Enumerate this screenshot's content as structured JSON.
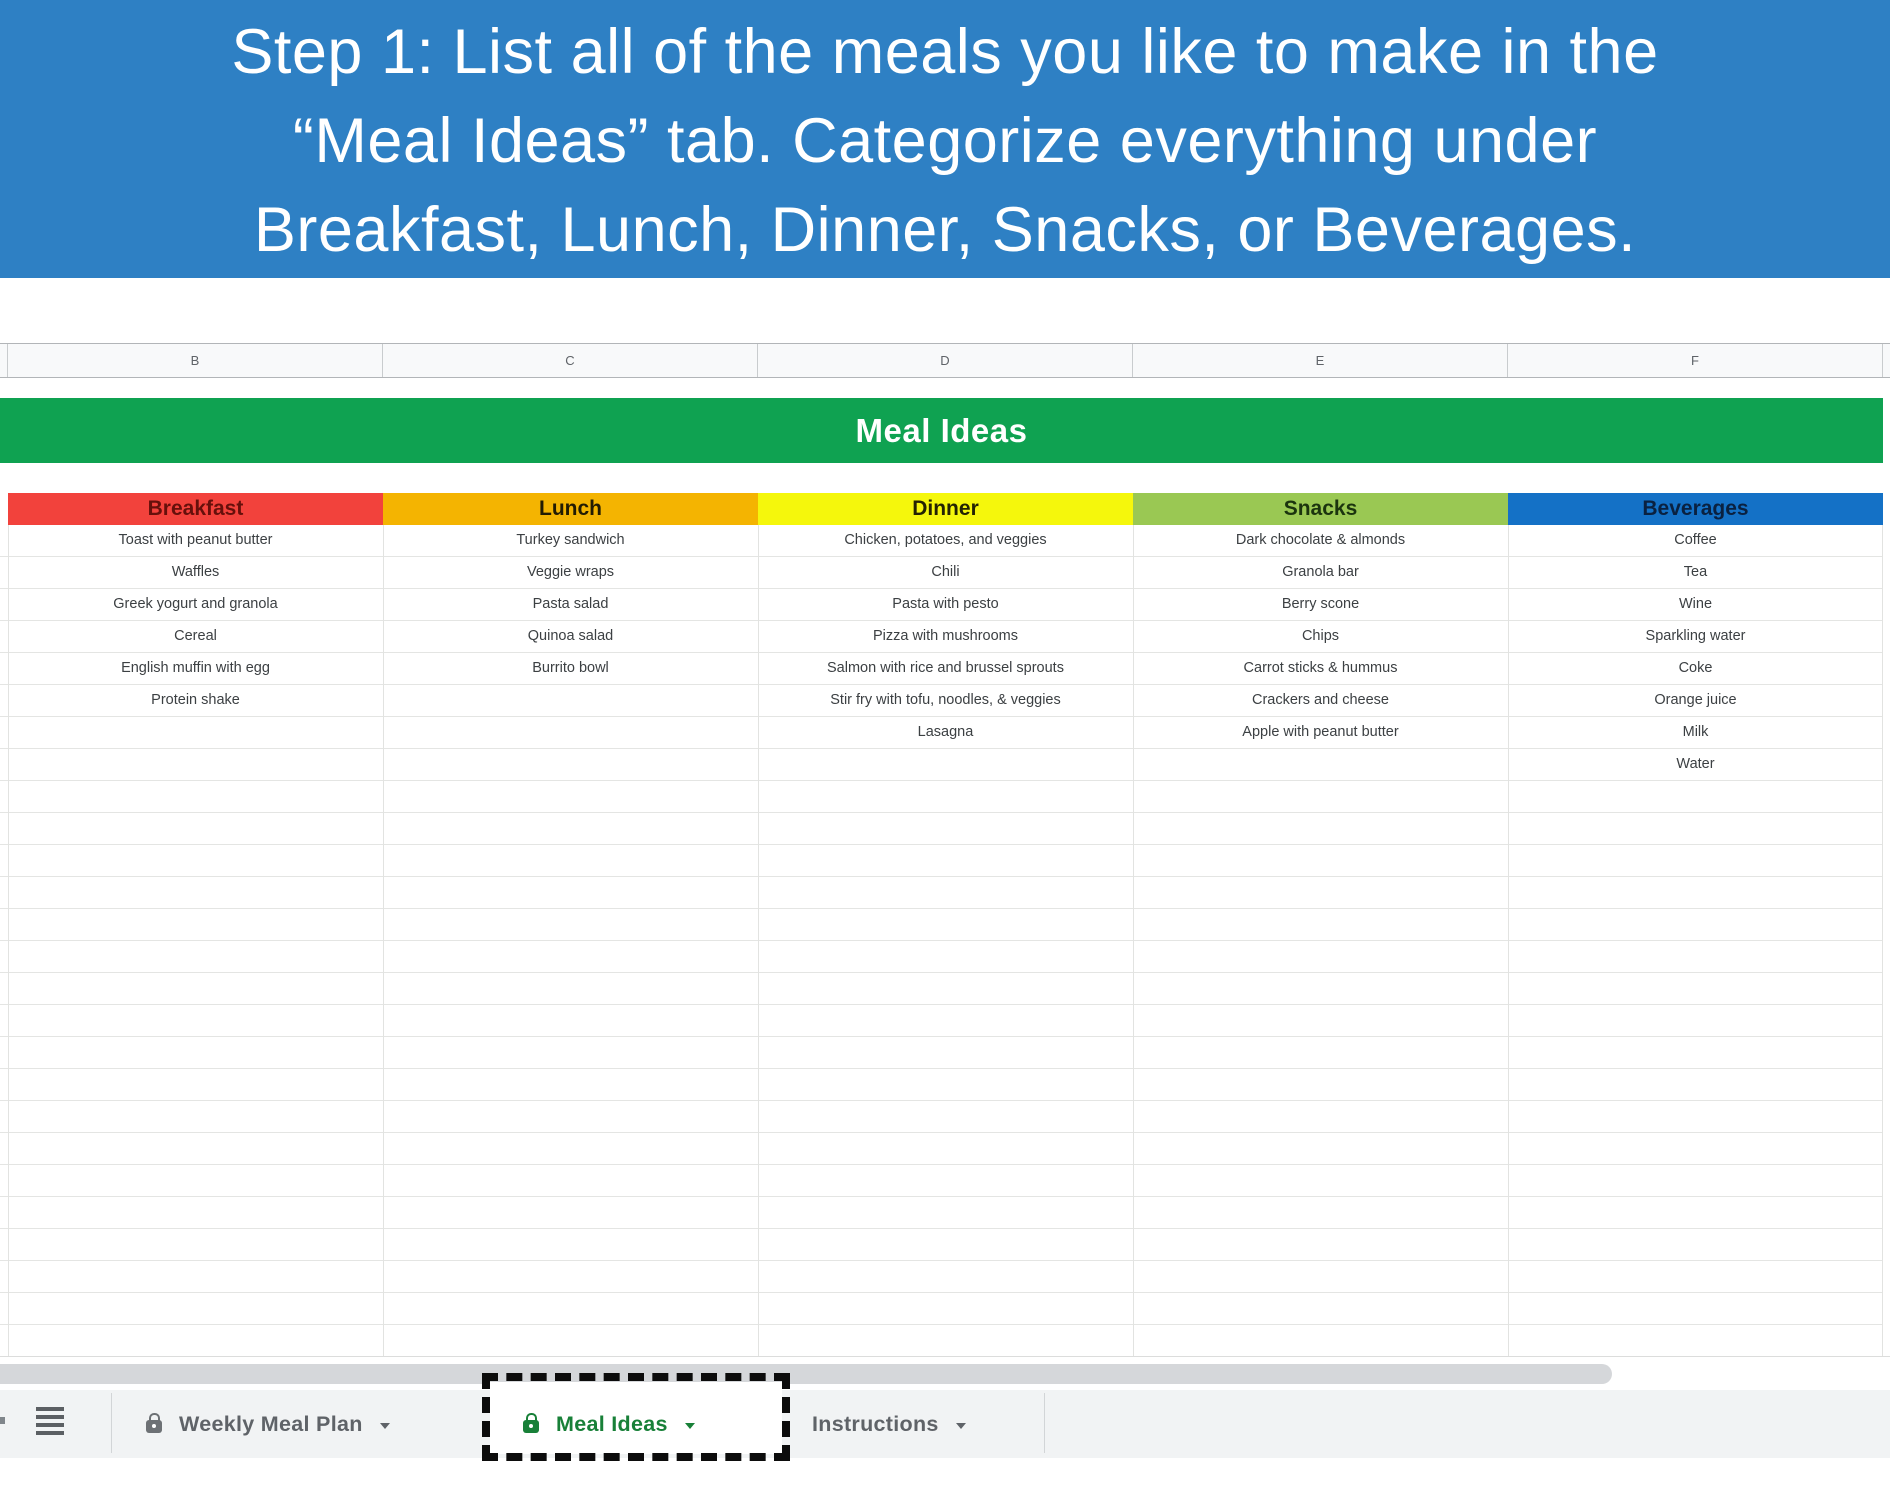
{
  "banner": {
    "bg": "#2e80c4",
    "lines": [
      "Step 1: List all of the meals you like to make in the",
      "“Meal Ideas” tab. Categorize everything under",
      "Breakfast, Lunch, Dinner, Snacks, or Beverages."
    ]
  },
  "column_headers": [
    "B",
    "C",
    "D",
    "E",
    "F"
  ],
  "sheet": {
    "title": "Meal Ideas",
    "title_bg": "#0fa251",
    "categories": [
      {
        "label": "Breakfast",
        "bg": "#f2423c",
        "fg": "#66100b"
      },
      {
        "label": "Lunch",
        "bg": "#f4b401",
        "fg": "#231c03"
      },
      {
        "label": "Dinner",
        "bg": "#f5f70c",
        "fg": "#232303"
      },
      {
        "label": "Snacks",
        "bg": "#9ac853",
        "fg": "#1b340e"
      },
      {
        "label": "Beverages",
        "bg": "#1471c6",
        "fg": "#0a2140"
      }
    ],
    "rows": [
      [
        "Toast with peanut butter",
        "Turkey sandwich",
        "Chicken, potatoes, and veggies",
        "Dark chocolate & almonds",
        "Coffee"
      ],
      [
        "Waffles",
        "Veggie wraps",
        "Chili",
        "Granola bar",
        "Tea"
      ],
      [
        "Greek yogurt and granola",
        "Pasta salad",
        "Pasta with pesto",
        "Berry scone",
        "Wine"
      ],
      [
        "Cereal",
        "Quinoa salad",
        "Pizza with mushrooms",
        "Chips",
        "Sparkling water"
      ],
      [
        "English muffin with egg",
        "Burrito bowl",
        "Salmon with rice and brussel sprouts",
        "Carrot sticks & hummus",
        "Coke"
      ],
      [
        "Protein shake",
        "",
        "Stir fry with tofu, noodles, & veggies",
        "Crackers and cheese",
        "Orange juice"
      ],
      [
        "",
        "",
        "Lasagna",
        "Apple with peanut butter",
        "Milk"
      ],
      [
        "",
        "",
        "",
        "",
        "Water"
      ]
    ],
    "empty_row_count": 18,
    "gridline_color": "#e4e5e3",
    "text_color": "#3c4043"
  },
  "scrollbar": {
    "color": "#d5d7da"
  },
  "tabbar": {
    "bg": "#f1f3f4",
    "inactive_color": "#5f6368",
    "active_color": "#188038",
    "icons": [
      "plus-icon",
      "all-sheets-hamburger-icon",
      "lock-icon",
      "caret-down-icon"
    ],
    "tabs": [
      {
        "label": "Weekly Meal Plan",
        "locked": true,
        "active": false
      },
      {
        "label": "Meal Ideas",
        "locked": true,
        "active": true,
        "highlighted": true
      },
      {
        "label": "Instructions",
        "locked": false,
        "active": false
      }
    ]
  }
}
